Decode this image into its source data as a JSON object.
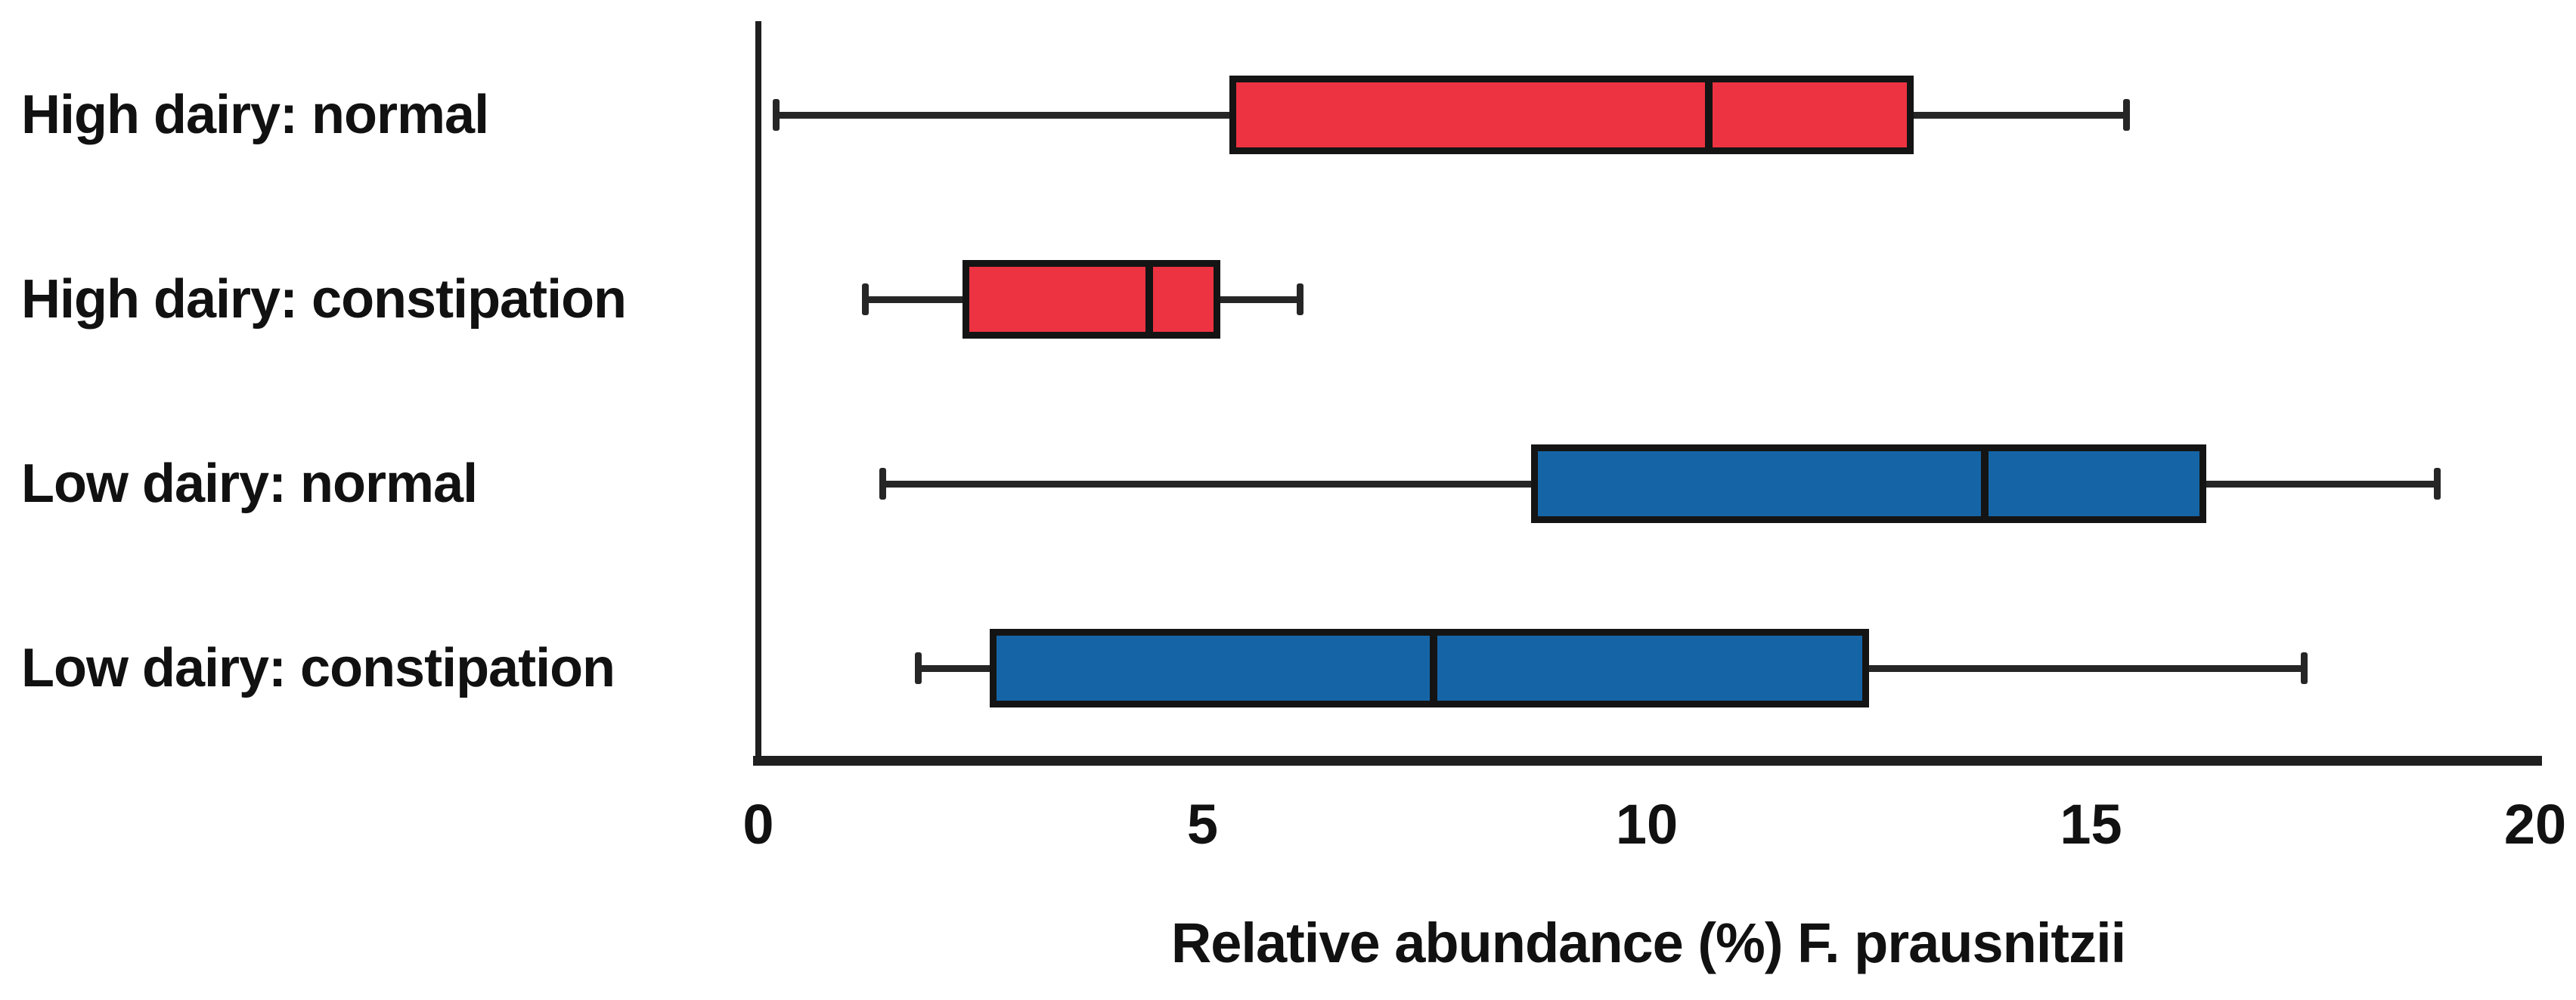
{
  "chart_data": {
    "type": "boxplot",
    "orientation": "horizontal",
    "title": "",
    "xlabel": "Relative abundance (%) F. prausnitzii",
    "ylabel": "",
    "xlim": [
      0,
      20
    ],
    "xticks": [
      0,
      5,
      10,
      15,
      20
    ],
    "xtick_labels": [
      "0",
      "5",
      "10",
      "15",
      "20"
    ],
    "grid": false,
    "legend": "none",
    "categories": [
      "High dairy: normal",
      "High dairy: constipation",
      "Low dairy: normal",
      "Low dairy: constipation"
    ],
    "colors": {
      "high_dairy": "#ed3241",
      "low_dairy": "#1565a6",
      "box_border": "#141414",
      "axis": "#1f1f1f",
      "text": "#111111",
      "background": "#ffffff"
    },
    "boxes": [
      {
        "label": "High dairy: normal",
        "group": "high_dairy",
        "fill": "#ed3241",
        "whisker_min": 0.2,
        "q1": 5.3,
        "median": 10.7,
        "q3": 13.0,
        "whisker_max": 15.4
      },
      {
        "label": "High dairy: constipation",
        "group": "high_dairy",
        "fill": "#ed3241",
        "whisker_min": 1.2,
        "q1": 2.3,
        "median": 4.4,
        "q3": 5.2,
        "whisker_max": 6.1
      },
      {
        "label": "Low dairy: normal",
        "group": "low_dairy",
        "fill": "#1565a6",
        "whisker_min": 1.4,
        "q1": 8.7,
        "median": 13.8,
        "q3": 16.3,
        "whisker_max": 18.9
      },
      {
        "label": "Low dairy: constipation",
        "group": "low_dairy",
        "fill": "#1565a6",
        "whisker_min": 1.8,
        "q1": 2.6,
        "median": 7.6,
        "q3": 12.5,
        "whisker_max": 17.4
      }
    ]
  }
}
